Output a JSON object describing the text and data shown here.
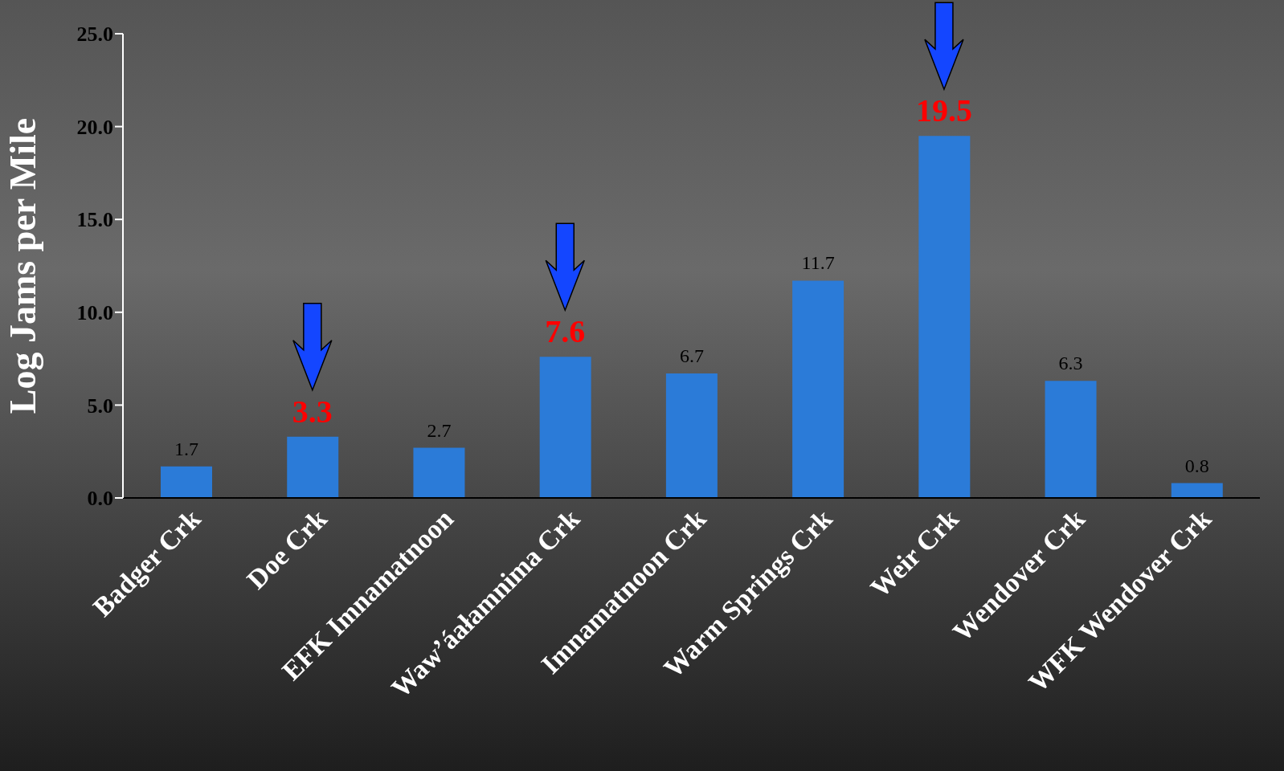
{
  "chart_data": {
    "type": "bar",
    "ylabel": "Log Jams per Mile",
    "categories": [
      "Badger Crk",
      "Doe Crk",
      "EFK Imnamatnoon",
      "Waw’áałamnima Crk",
      "Imnamatnoon Crk",
      "Warm Springs Crk",
      "Weir Crk",
      "Wendover Crk",
      "WFK Wendover Crk"
    ],
    "values": [
      1.7,
      3.3,
      2.7,
      7.6,
      6.7,
      11.7,
      19.5,
      6.3,
      0.8
    ],
    "value_labels": [
      "1.7",
      null,
      "2.7",
      null,
      "6.7",
      "11.7",
      null,
      "6.3",
      "0.8"
    ],
    "color": "#2b7bd8",
    "ylim": [
      0,
      25
    ],
    "yticks": [
      {
        "value": 0,
        "label": "0.0"
      },
      {
        "value": 5,
        "label": "5.0"
      },
      {
        "value": 10,
        "label": "10.0"
      },
      {
        "value": 15,
        "label": "15.0"
      },
      {
        "value": 20,
        "label": "20.0"
      },
      {
        "value": 25,
        "label": "25.0"
      }
    ],
    "annotations": [
      {
        "text": "3.3",
        "x": "Doe Crk",
        "y": 3.3
      },
      {
        "text": "7.6",
        "x": "Waw’áałamnima Crk",
        "y": 7.6
      },
      {
        "text": "19.5",
        "x": "Weir Crk",
        "y": 19.5
      }
    ],
    "grid": false,
    "legend": false
  }
}
